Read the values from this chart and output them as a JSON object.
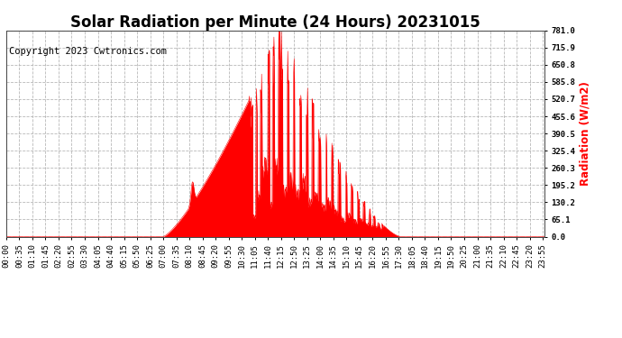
{
  "title": "Solar Radiation per Minute (24 Hours) 20231015",
  "copyright_text": "Copyright 2023 Cwtronics.com",
  "ylabel": "Radiation (W/m2)",
  "ylabel_color": "#ff0000",
  "fill_color": "#ff0000",
  "line_color": "#ff0000",
  "background_color": "#ffffff",
  "grid_color": "#b0b0b0",
  "yticks": [
    0.0,
    65.1,
    130.2,
    195.2,
    260.3,
    325.4,
    390.5,
    455.6,
    520.7,
    585.8,
    650.8,
    715.9,
    781.0
  ],
  "ymax": 781.0,
  "ymin": 0.0,
  "title_fontsize": 12,
  "tick_fontsize": 6.5,
  "copyright_fontsize": 7.5
}
